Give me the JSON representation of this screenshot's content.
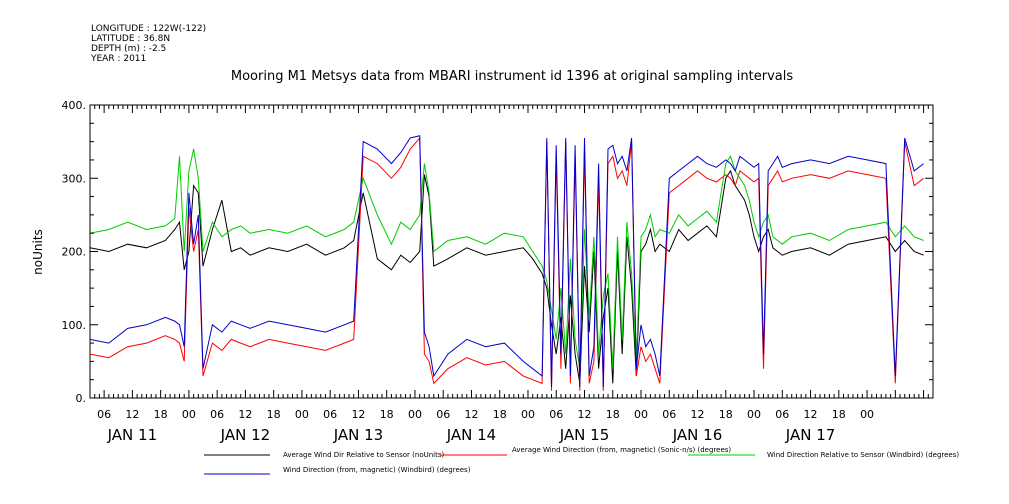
{
  "header": {
    "longitude": "LONGITUDE : 122W(-122)",
    "latitude": "LATITUDE : 36.8N",
    "depth": "DEPTH (m) : -2.5",
    "year": "YEAR : 2011"
  },
  "chart_data": {
    "type": "line",
    "title": "Mooring M1 Metsys data from MBARI instrument id 1396 at original sampling intervals",
    "xlabel": "",
    "ylabel": "noUnits",
    "ylim": [
      0,
      400
    ],
    "yticks": [
      "0.",
      "100.",
      "200.",
      "300.",
      "400."
    ],
    "xlim_hours": [
      -9,
      170
    ],
    "hour_ticks": [
      "06",
      "12",
      "18",
      "00",
      "06",
      "12",
      "18",
      "00",
      "06",
      "12",
      "18",
      "00",
      "06",
      "12",
      "18",
      "00",
      "06",
      "12",
      "18",
      "00",
      "06",
      "12",
      "18",
      "00",
      "06",
      "12",
      "18",
      "00"
    ],
    "day_labels": [
      "JAN 11",
      "JAN 12",
      "JAN 13",
      "JAN 14",
      "JAN 15",
      "JAN 16",
      "JAN 17"
    ],
    "grid": false,
    "legend_position": "bottom",
    "series": [
      {
        "name": "Average Wind Dir Relative to Sensor (noUnits)",
        "color": "#000000",
        "x_hours": [
          -9,
          -5,
          -1,
          3,
          7,
          9,
          10,
          11,
          12,
          13,
          14,
          15,
          17,
          19,
          21,
          23,
          25,
          29,
          33,
          37,
          41,
          45,
          47,
          49,
          52,
          55,
          57,
          59,
          61,
          62,
          63,
          64,
          67,
          71,
          75,
          79,
          83,
          85,
          87,
          88,
          89,
          90,
          91,
          92,
          93,
          94,
          95,
          96,
          97,
          98,
          99,
          100,
          101,
          102,
          103,
          104,
          105,
          106,
          107,
          108,
          109,
          110,
          111,
          112,
          114,
          116,
          118,
          120,
          122,
          124,
          126,
          127,
          128,
          129,
          130,
          131,
          132,
          133,
          134,
          135,
          136,
          137,
          138,
          140,
          144,
          148,
          152,
          156,
          160,
          162,
          164,
          166,
          168
        ],
        "y": [
          205,
          200,
          210,
          205,
          215,
          230,
          240,
          175,
          200,
          290,
          280,
          180,
          230,
          270,
          200,
          205,
          195,
          205,
          200,
          210,
          195,
          205,
          215,
          280,
          190,
          175,
          195,
          185,
          200,
          305,
          275,
          180,
          190,
          205,
          195,
          200,
          205,
          190,
          170,
          150,
          100,
          60,
          110,
          40,
          140,
          60,
          20,
          180,
          90,
          200,
          40,
          110,
          150,
          20,
          200,
          60,
          220,
          150,
          30,
          200,
          210,
          230,
          200,
          210,
          200,
          230,
          215,
          225,
          235,
          220,
          300,
          310,
          290,
          280,
          270,
          250,
          220,
          200,
          220,
          230,
          205,
          200,
          195,
          200,
          205,
          195,
          210,
          215,
          220,
          200,
          215,
          200,
          195
        ]
      },
      {
        "name": "Average Wind Direction (from, magnetic) (Sonic-n/s) (degrees)",
        "color": "#ff0000",
        "x_hours": [
          -9,
          -5,
          -1,
          3,
          7,
          9,
          10,
          11,
          12,
          13,
          14,
          15,
          17,
          19,
          21,
          23,
          25,
          29,
          33,
          37,
          41,
          45,
          47,
          49,
          52,
          55,
          57,
          59,
          61,
          62,
          63,
          64,
          67,
          71,
          75,
          79,
          83,
          85,
          87,
          88,
          89,
          90,
          91,
          92,
          93,
          94,
          95,
          96,
          97,
          98,
          99,
          100,
          101,
          102,
          103,
          104,
          105,
          106,
          107,
          108,
          109,
          110,
          111,
          112,
          114,
          116,
          118,
          120,
          122,
          124,
          126,
          127,
          128,
          129,
          130,
          131,
          132,
          133,
          134,
          135,
          136,
          137,
          138,
          140,
          144,
          148,
          152,
          156,
          160,
          162,
          164,
          166,
          168
        ],
        "y": [
          60,
          55,
          70,
          75,
          85,
          80,
          75,
          50,
          260,
          200,
          230,
          30,
          75,
          65,
          80,
          75,
          70,
          80,
          75,
          70,
          65,
          75,
          80,
          330,
          320,
          300,
          315,
          340,
          355,
          60,
          50,
          20,
          40,
          55,
          45,
          50,
          30,
          25,
          20,
          350,
          10,
          330,
          40,
          350,
          20,
          330,
          10,
          340,
          20,
          50,
          300,
          10,
          320,
          330,
          300,
          310,
          290,
          350,
          30,
          70,
          50,
          60,
          40,
          20,
          280,
          290,
          300,
          310,
          300,
          295,
          305,
          300,
          290,
          310,
          305,
          300,
          295,
          300,
          40,
          290,
          300,
          310,
          295,
          300,
          305,
          300,
          310,
          305,
          300,
          20,
          350,
          290,
          300
        ]
      },
      {
        "name": "Wind Direction Relative to Sensor (Windbird) (degrees)",
        "color": "#00cc00",
        "x_hours": [
          -9,
          -5,
          -1,
          3,
          7,
          9,
          10,
          11,
          12,
          13,
          14,
          15,
          17,
          19,
          21,
          23,
          25,
          29,
          33,
          37,
          41,
          45,
          47,
          49,
          52,
          55,
          57,
          59,
          61,
          62,
          63,
          64,
          67,
          71,
          75,
          79,
          83,
          85,
          87,
          88,
          89,
          90,
          91,
          92,
          93,
          94,
          95,
          96,
          97,
          98,
          99,
          100,
          101,
          102,
          103,
          104,
          105,
          106,
          107,
          108,
          109,
          110,
          111,
          112,
          114,
          116,
          118,
          120,
          122,
          124,
          126,
          127,
          128,
          129,
          130,
          131,
          132,
          133,
          134,
          135,
          136,
          137,
          138,
          140,
          144,
          148,
          152,
          156,
          160,
          162,
          164,
          166,
          168
        ],
        "y": [
          225,
          230,
          240,
          230,
          235,
          245,
          330,
          200,
          310,
          340,
          300,
          200,
          240,
          220,
          230,
          235,
          225,
          230,
          225,
          235,
          220,
          230,
          240,
          300,
          250,
          210,
          240,
          230,
          250,
          320,
          280,
          200,
          215,
          220,
          210,
          225,
          220,
          200,
          180,
          160,
          120,
          80,
          150,
          60,
          190,
          80,
          40,
          230,
          110,
          220,
          60,
          140,
          170,
          40,
          220,
          80,
          240,
          170,
          50,
          220,
          230,
          250,
          220,
          230,
          225,
          250,
          235,
          245,
          255,
          240,
          320,
          330,
          310,
          300,
          290,
          270,
          240,
          220,
          240,
          250,
          220,
          215,
          210,
          220,
          225,
          215,
          230,
          235,
          240,
          220,
          235,
          220,
          215
        ]
      },
      {
        "name": "Wind Direction (from, magnetic) (Windbird) (degrees)",
        "color": "#0000cc",
        "x_hours": [
          -9,
          -5,
          -1,
          3,
          7,
          9,
          10,
          11,
          12,
          13,
          14,
          15,
          17,
          19,
          21,
          23,
          25,
          29,
          33,
          37,
          41,
          45,
          47,
          49,
          52,
          55,
          57,
          59,
          61,
          62,
          63,
          64,
          67,
          71,
          75,
          79,
          83,
          85,
          87,
          88,
          89,
          90,
          91,
          92,
          93,
          94,
          95,
          96,
          97,
          98,
          99,
          100,
          101,
          102,
          103,
          104,
          105,
          106,
          107,
          108,
          109,
          110,
          111,
          112,
          114,
          116,
          118,
          120,
          122,
          124,
          126,
          127,
          128,
          129,
          130,
          131,
          132,
          133,
          134,
          135,
          136,
          137,
          138,
          140,
          144,
          148,
          152,
          156,
          160,
          162,
          164,
          166,
          168
        ],
        "y": [
          80,
          75,
          95,
          100,
          110,
          105,
          100,
          70,
          280,
          210,
          250,
          40,
          100,
          90,
          105,
          100,
          95,
          105,
          100,
          95,
          90,
          100,
          105,
          350,
          340,
          320,
          335,
          355,
          358,
          90,
          70,
          30,
          60,
          80,
          70,
          75,
          50,
          40,
          30,
          355,
          15,
          345,
          60,
          355,
          30,
          345,
          15,
          355,
          30,
          70,
          320,
          15,
          340,
          345,
          320,
          330,
          310,
          355,
          40,
          100,
          70,
          80,
          60,
          30,
          300,
          310,
          320,
          330,
          320,
          315,
          325,
          320,
          310,
          330,
          325,
          320,
          315,
          320,
          60,
          310,
          320,
          330,
          315,
          320,
          325,
          320,
          330,
          325,
          320,
          30,
          355,
          310,
          320
        ]
      }
    ]
  }
}
